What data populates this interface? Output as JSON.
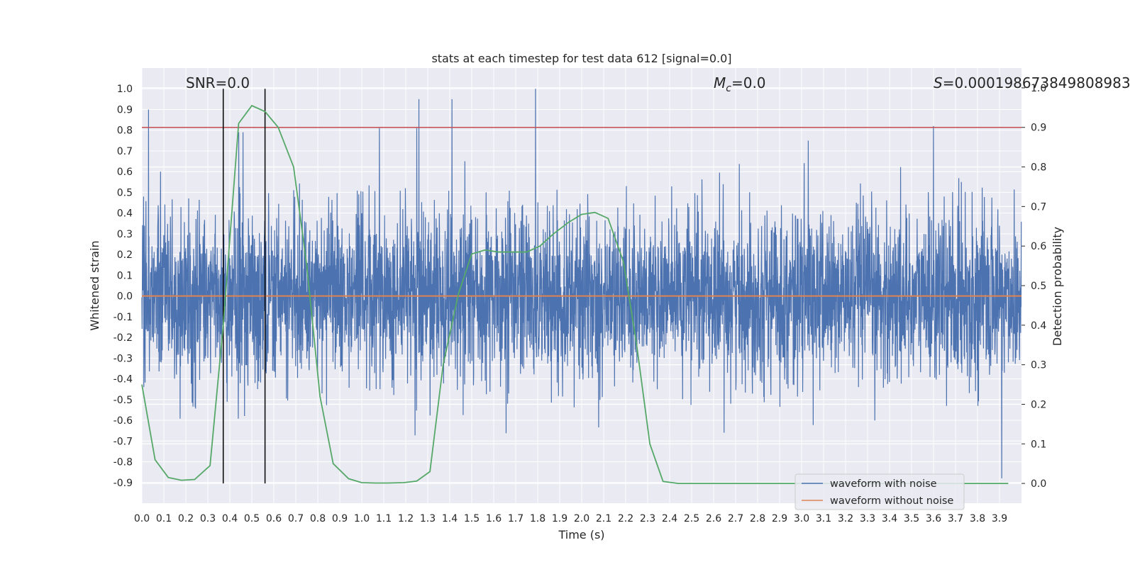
{
  "chart_data": {
    "type": "line",
    "title": "stats at each timestep for test data 612 [signal=0.0]",
    "xlabel": "Time (s)",
    "ylabel": "Whitened strain",
    "ylabel_right": "Detection probability",
    "xlim": [
      0.0,
      4.0
    ],
    "ylim": [
      -1.0,
      1.1
    ],
    "ylim_right": [
      -0.05,
      1.05
    ],
    "x_ticks": [
      "0.0",
      "0.1",
      "0.2",
      "0.3",
      "0.4",
      "0.5",
      "0.6",
      "0.7",
      "0.8",
      "0.9",
      "1.0",
      "1.1",
      "1.2",
      "1.3",
      "1.4",
      "1.5",
      "1.6",
      "1.7",
      "1.8",
      "1.9",
      "2.0",
      "2.1",
      "2.2",
      "2.3",
      "2.4",
      "2.5",
      "2.6",
      "2.7",
      "2.8",
      "2.9",
      "3.0",
      "3.1",
      "3.2",
      "3.3",
      "3.4",
      "3.5",
      "3.6",
      "3.7",
      "3.8",
      "3.9"
    ],
    "y_ticks": [
      "1.0",
      "0.9",
      "0.8",
      "0.7",
      "0.6",
      "0.5",
      "0.4",
      "0.3",
      "0.2",
      "0.1",
      "0.0",
      "-0.1",
      "-0.2",
      "-0.3",
      "-0.4",
      "-0.5",
      "-0.6",
      "-0.7",
      "-0.8",
      "-0.9"
    ],
    "y_ticks_right": [
      "1.0",
      "0.9",
      "0.8",
      "0.7",
      "0.6",
      "0.5",
      "0.4",
      "0.3",
      "0.2",
      "0.1",
      "0.0"
    ],
    "annotations": {
      "snr": "SNR=0.0",
      "mc_symbol": "M",
      "mc_sub": "c",
      "mc_value": "=0.0",
      "s_symbol": "S",
      "s_value": "=0.000198673849808983"
    },
    "series": [
      {
        "name": "waveform with noise",
        "color": "#4c72b0",
        "note": "dense whitened strain noise, ~4096 samples, roughly in [-0.9, 1.0]",
        "peaks": [
          [
            0.03,
            0.9
          ],
          [
            0.44,
            0.79
          ],
          [
            0.46,
            0.79
          ],
          [
            1.08,
            0.81
          ],
          [
            1.25,
            0.81
          ],
          [
            1.26,
            0.95
          ],
          [
            1.41,
            0.95
          ],
          [
            1.79,
            1.0
          ],
          [
            3.03,
            0.75
          ],
          [
            3.6,
            0.82
          ],
          [
            3.91,
            -0.88
          ]
        ]
      },
      {
        "name": "waveform without noise",
        "color": "#dd8452",
        "x": [
          0.0,
          4.0
        ],
        "y": [
          0.0,
          0.0
        ]
      },
      {
        "name": "detection probability",
        "axis": "right",
        "color": "#55a868",
        "x": [
          0.0,
          0.06,
          0.12,
          0.18,
          0.24,
          0.31,
          0.37,
          0.44,
          0.5,
          0.56,
          0.62,
          0.69,
          0.75,
          0.81,
          0.87,
          0.94,
          1.0,
          1.06,
          1.12,
          1.19,
          1.25,
          1.31,
          1.37,
          1.44,
          1.5,
          1.56,
          1.62,
          1.69,
          1.75,
          1.81,
          1.87,
          1.94,
          2.0,
          2.06,
          2.12,
          2.19,
          2.25,
          2.31,
          2.37,
          2.44,
          2.5,
          2.56,
          2.62,
          2.69,
          2.75,
          2.81,
          2.87,
          2.94,
          3.0,
          3.06,
          3.12,
          3.19,
          3.25,
          3.31,
          3.37,
          3.44,
          3.5,
          3.56,
          3.62,
          3.69,
          3.75,
          3.81,
          3.87,
          3.94
        ],
        "y": [
          0.25,
          0.06,
          0.015,
          0.008,
          0.01,
          0.045,
          0.4,
          0.91,
          0.955,
          0.94,
          0.9,
          0.8,
          0.55,
          0.22,
          0.05,
          0.012,
          0.002,
          0.001,
          0.001,
          0.002,
          0.006,
          0.03,
          0.3,
          0.48,
          0.58,
          0.59,
          0.585,
          0.585,
          0.585,
          0.6,
          0.63,
          0.66,
          0.68,
          0.685,
          0.67,
          0.56,
          0.35,
          0.1,
          0.005,
          0.0,
          0.0,
          0.0,
          0.0,
          0.0,
          0.0,
          0.0,
          0.0,
          0.0,
          0.0,
          0.0,
          0.0,
          0.0,
          0.0,
          0.0,
          0.0,
          0.0,
          0.0,
          0.0,
          0.0,
          0.0,
          0.0,
          0.0,
          0.0,
          0.0
        ]
      }
    ],
    "hlines_right": [
      {
        "y": 0.9,
        "color": "#c44e52"
      }
    ],
    "vlines": [
      0.37,
      0.56
    ],
    "legend": {
      "placement": "lower-right",
      "entries": [
        {
          "label": "waveform with noise",
          "color": "#4c72b0"
        },
        {
          "label": "waveform without noise",
          "color": "#dd8452"
        }
      ]
    }
  }
}
